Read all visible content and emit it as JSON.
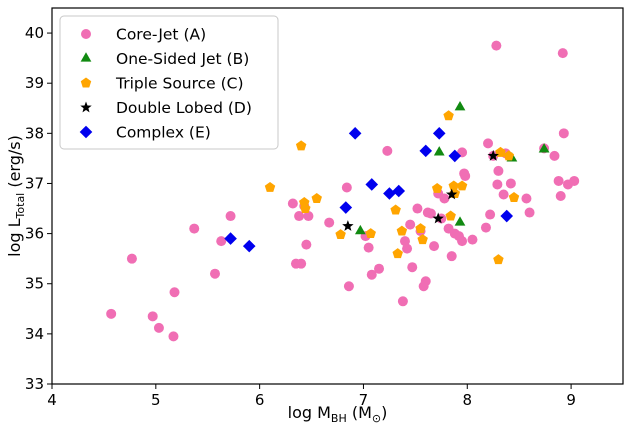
{
  "chart_data": {
    "type": "scatter",
    "xlabel_main": "log M",
    "xlabel_sub": "BH",
    "xlabel_unit_pre": " (M",
    "xlabel_unit_sub": "⊙",
    "xlabel_unit_post": ")",
    "ylabel_main": "log L",
    "ylabel_sub": "Total",
    "ylabel_unit": " (erg/s)",
    "xlim": [
      4,
      9.5
    ],
    "ylim": [
      33,
      40.5
    ],
    "xticks": [
      4,
      5,
      6,
      7,
      8,
      9
    ],
    "yticks": [
      33,
      34,
      35,
      36,
      37,
      38,
      39,
      40
    ],
    "legend_position": "top-left",
    "series": [
      {
        "name": "Core-Jet (A)",
        "marker": "circle",
        "color": "#f06eb4",
        "points": [
          [
            4.57,
            34.4
          ],
          [
            4.77,
            35.5
          ],
          [
            4.97,
            34.35
          ],
          [
            5.03,
            34.12
          ],
          [
            5.17,
            33.95
          ],
          [
            5.18,
            34.83
          ],
          [
            5.37,
            36.1
          ],
          [
            5.57,
            35.2
          ],
          [
            5.63,
            35.85
          ],
          [
            5.72,
            36.35
          ],
          [
            6.32,
            36.6
          ],
          [
            6.35,
            35.4
          ],
          [
            6.38,
            36.35
          ],
          [
            6.4,
            35.4
          ],
          [
            6.43,
            36.55
          ],
          [
            6.45,
            35.78
          ],
          [
            6.47,
            36.35
          ],
          [
            6.67,
            36.22
          ],
          [
            6.84,
            36.92
          ],
          [
            6.86,
            34.95
          ],
          [
            7.02,
            35.95
          ],
          [
            7.05,
            35.72
          ],
          [
            7.08,
            35.18
          ],
          [
            7.15,
            35.3
          ],
          [
            7.23,
            37.65
          ],
          [
            7.38,
            34.65
          ],
          [
            7.4,
            35.85
          ],
          [
            7.42,
            35.7
          ],
          [
            7.45,
            36.18
          ],
          [
            7.47,
            35.33
          ],
          [
            7.52,
            36.5
          ],
          [
            7.55,
            36.05
          ],
          [
            7.58,
            34.95
          ],
          [
            7.6,
            35.05
          ],
          [
            7.62,
            36.42
          ],
          [
            7.65,
            36.4
          ],
          [
            7.68,
            35.75
          ],
          [
            7.72,
            36.8
          ],
          [
            7.75,
            36.3
          ],
          [
            7.78,
            36.7
          ],
          [
            7.82,
            36.1
          ],
          [
            7.85,
            35.55
          ],
          [
            7.88,
            36.0
          ],
          [
            7.92,
            35.95
          ],
          [
            7.95,
            35.85
          ],
          [
            7.95,
            37.62
          ],
          [
            7.97,
            37.2
          ],
          [
            7.98,
            37.15
          ],
          [
            8.05,
            35.88
          ],
          [
            8.18,
            36.12
          ],
          [
            8.2,
            37.8
          ],
          [
            8.22,
            36.38
          ],
          [
            8.25,
            37.55
          ],
          [
            8.28,
            39.75
          ],
          [
            8.3,
            37.25
          ],
          [
            8.35,
            36.78
          ],
          [
            8.37,
            37.6
          ],
          [
            8.42,
            37.0
          ],
          [
            8.57,
            36.7
          ],
          [
            8.6,
            36.42
          ],
          [
            8.74,
            37.7
          ],
          [
            8.84,
            37.55
          ],
          [
            8.88,
            37.05
          ],
          [
            8.9,
            36.75
          ],
          [
            8.92,
            39.6
          ],
          [
            8.93,
            38.0
          ],
          [
            8.97,
            36.98
          ],
          [
            9.03,
            37.05
          ],
          [
            8.29,
            36.98
          ]
        ]
      },
      {
        "name": "One-Sided Jet (B)",
        "marker": "triangle",
        "color": "#118a11",
        "points": [
          [
            6.97,
            36.05
          ],
          [
            7.73,
            37.62
          ],
          [
            7.93,
            38.52
          ],
          [
            7.93,
            36.22
          ],
          [
            8.43,
            37.5
          ],
          [
            8.74,
            37.68
          ]
        ]
      },
      {
        "name": "Triple Source (C)",
        "marker": "pentagon",
        "color": "#ffa500",
        "points": [
          [
            6.1,
            36.92
          ],
          [
            6.4,
            37.75
          ],
          [
            6.43,
            36.62
          ],
          [
            6.44,
            36.5
          ],
          [
            6.55,
            36.7
          ],
          [
            6.78,
            35.98
          ],
          [
            7.07,
            36.0
          ],
          [
            7.31,
            36.47
          ],
          [
            7.33,
            35.6
          ],
          [
            7.37,
            36.05
          ],
          [
            7.55,
            36.1
          ],
          [
            7.57,
            35.88
          ],
          [
            7.71,
            36.9
          ],
          [
            7.82,
            38.35
          ],
          [
            7.84,
            36.35
          ],
          [
            7.87,
            36.95
          ],
          [
            7.88,
            36.8
          ],
          [
            7.95,
            36.95
          ],
          [
            8.3,
            35.48
          ],
          [
            8.32,
            37.62
          ],
          [
            8.4,
            37.55
          ],
          [
            8.45,
            36.72
          ]
        ]
      },
      {
        "name": "Double Lobed (D)",
        "marker": "star",
        "color": "#000000",
        "points": [
          [
            6.85,
            36.15
          ],
          [
            7.72,
            36.3
          ],
          [
            7.85,
            36.78
          ],
          [
            8.25,
            37.55
          ]
        ]
      },
      {
        "name": "Complex (E)",
        "marker": "diamond",
        "color": "#0000ee",
        "points": [
          [
            5.72,
            35.9
          ],
          [
            5.9,
            35.75
          ],
          [
            6.83,
            36.52
          ],
          [
            6.92,
            38.0
          ],
          [
            7.08,
            36.98
          ],
          [
            7.25,
            36.8
          ],
          [
            7.34,
            36.85
          ],
          [
            7.6,
            37.65
          ],
          [
            7.73,
            38.0
          ],
          [
            7.88,
            37.55
          ],
          [
            8.38,
            36.35
          ]
        ]
      }
    ]
  }
}
